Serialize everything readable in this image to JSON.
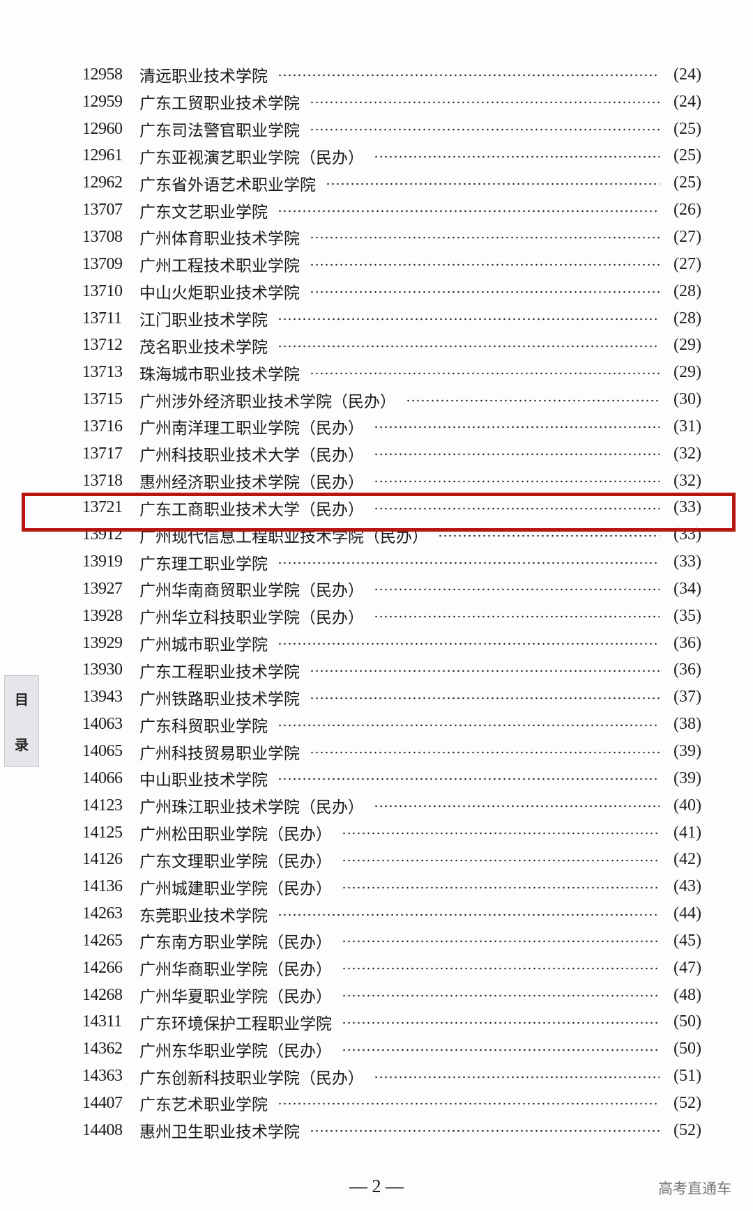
{
  "entries": [
    {
      "code": "12958",
      "name": "清远职业技术学院",
      "page": "(24)"
    },
    {
      "code": "12959",
      "name": "广东工贸职业技术学院",
      "page": "(24)"
    },
    {
      "code": "12960",
      "name": "广东司法警官职业学院",
      "page": "(25)"
    },
    {
      "code": "12961",
      "name": "广东亚视演艺职业学院（民办）",
      "page": "(25)"
    },
    {
      "code": "12962",
      "name": "广东省外语艺术职业学院",
      "page": "(25)"
    },
    {
      "code": "13707",
      "name": "广东文艺职业学院",
      "page": "(26)"
    },
    {
      "code": "13708",
      "name": "广州体育职业技术学院",
      "page": "(27)"
    },
    {
      "code": "13709",
      "name": "广州工程技术职业学院",
      "page": "(27)"
    },
    {
      "code": "13710",
      "name": "中山火炬职业技术学院",
      "page": "(28)"
    },
    {
      "code": "13711",
      "name": "江门职业技术学院",
      "page": "(28)"
    },
    {
      "code": "13712",
      "name": "茂名职业技术学院",
      "page": "(29)"
    },
    {
      "code": "13713",
      "name": "珠海城市职业技术学院",
      "page": "(29)"
    },
    {
      "code": "13715",
      "name": "广州涉外经济职业技术学院（民办）",
      "page": "(30)"
    },
    {
      "code": "13716",
      "name": "广州南洋理工职业学院（民办）",
      "page": "(31)"
    },
    {
      "code": "13717",
      "name": "广州科技职业技术大学（民办）",
      "page": "(32)"
    },
    {
      "code": "13718",
      "name": "惠州经济职业技术学院（民办）",
      "page": "(32)"
    },
    {
      "code": "13721",
      "name": "广东工商职业技术大学（民办）",
      "page": "(33)"
    },
    {
      "code": "13912",
      "name": "广州现代信息工程职业技术学院（民办）",
      "page": "(33)"
    },
    {
      "code": "13919",
      "name": "广东理工职业学院",
      "page": "(33)"
    },
    {
      "code": "13927",
      "name": "广州华南商贸职业学院（民办）",
      "page": "(34)"
    },
    {
      "code": "13928",
      "name": "广州华立科技职业学院（民办）",
      "page": "(35)"
    },
    {
      "code": "13929",
      "name": "广州城市职业学院",
      "page": "(36)"
    },
    {
      "code": "13930",
      "name": "广东工程职业技术学院",
      "page": "(36)"
    },
    {
      "code": "13943",
      "name": "广州铁路职业技术学院",
      "page": "(37)"
    },
    {
      "code": "14063",
      "name": "广东科贸职业学院",
      "page": "(38)"
    },
    {
      "code": "14065",
      "name": "广州科技贸易职业学院",
      "page": "(39)"
    },
    {
      "code": "14066",
      "name": "中山职业技术学院",
      "page": "(39)"
    },
    {
      "code": "14123",
      "name": "广州珠江职业技术学院（民办）",
      "page": "(40)"
    },
    {
      "code": "14125",
      "name": "广州松田职业学院（民办）",
      "page": "(41)"
    },
    {
      "code": "14126",
      "name": "广东文理职业学院（民办）",
      "page": "(42)"
    },
    {
      "code": "14136",
      "name": "广州城建职业学院（民办）",
      "page": "(43)"
    },
    {
      "code": "14263",
      "name": "东莞职业技术学院",
      "page": "(44)"
    },
    {
      "code": "14265",
      "name": "广东南方职业学院（民办）",
      "page": "(45)"
    },
    {
      "code": "14266",
      "name": "广州华商职业学院（民办）",
      "page": "(47)"
    },
    {
      "code": "14268",
      "name": "广州华夏职业学院（民办）",
      "page": "(48)"
    },
    {
      "code": "14311",
      "name": "广东环境保护工程职业学院",
      "page": "(50)"
    },
    {
      "code": "14362",
      "name": "广州东华职业学院（民办）",
      "page": "(50)"
    },
    {
      "code": "14363",
      "name": "广东创新科技职业学院（民办）",
      "page": "(51)"
    },
    {
      "code": "14407",
      "name": "广东艺术职业学院",
      "page": "(52)"
    },
    {
      "code": "14408",
      "name": "惠州卫生职业技术学院",
      "page": "(52)"
    }
  ],
  "highlighted_code": "13721",
  "highlight_color": "#b8170f",
  "side_tab": {
    "line1": "目",
    "line2": "录"
  },
  "footer": {
    "page_number": "— 2 —",
    "watermark": "高考直通车"
  }
}
